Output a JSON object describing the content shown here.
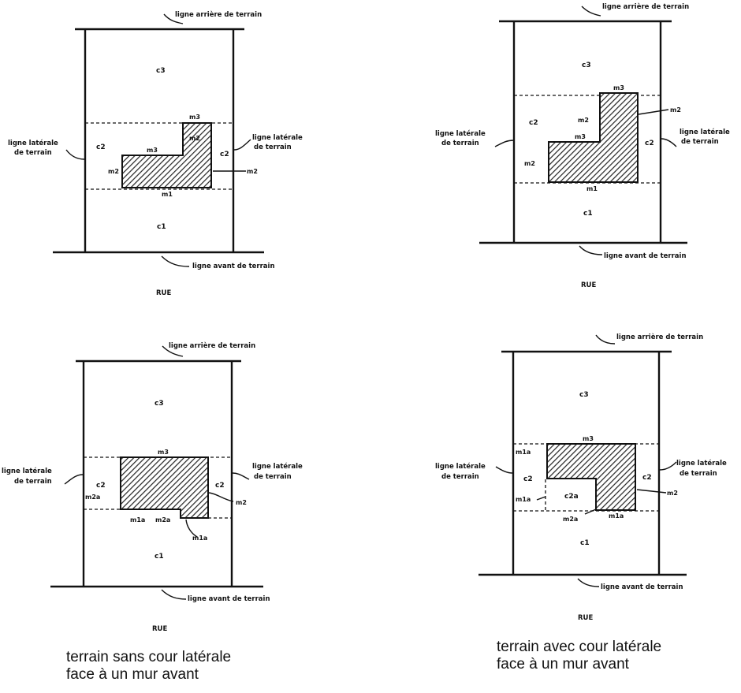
{
  "diagrams": [
    {
      "ligne_arriere": "ligne arrière de terrain",
      "ligne_avant": "ligne avant de terrain",
      "ligne_laterale_g_1": "ligne latérale",
      "ligne_laterale_g_2": "de terrain",
      "ligne_laterale_d_1": "ligne latérale",
      "ligne_laterale_d_2": "de terrain",
      "rue": "RUE",
      "zones": {
        "c1": "c1",
        "c2_left": "c2",
        "c2_right": "c2",
        "c3": "c3"
      },
      "walls": {
        "m1": "m1",
        "m2_left": "m2",
        "m2_inner": "m2",
        "m2_right": "m2",
        "m3_inner": "m3",
        "m3_top": "m3"
      }
    },
    {
      "ligne_arriere": "ligne arrière de terrain",
      "ligne_avant": "ligne avant de terrain",
      "ligne_laterale_g_1": "ligne latérale",
      "ligne_laterale_g_2": "de terrain",
      "ligne_laterale_d_1": "ligne latérale",
      "ligne_laterale_d_2": "de terrain",
      "rue": "RUE",
      "zones": {
        "c1": "c1",
        "c2_left": "c2",
        "c2_right": "c2",
        "c3": "c3"
      },
      "walls": {
        "m1": "m1",
        "m2_left": "m2",
        "m2_inner": "m2",
        "m2_right": "m2",
        "m3_inner": "m3",
        "m3_top": "m3"
      }
    },
    {
      "ligne_arriere": "ligne arrière de terrain",
      "ligne_avant": "ligne avant de terrain",
      "ligne_laterale_g_1": "ligne latérale",
      "ligne_laterale_g_2": "de terrain",
      "ligne_laterale_d_1": "ligne latérale",
      "ligne_laterale_d_2": "de terrain",
      "rue": "RUE",
      "zones": {
        "c1": "c1",
        "c2_left": "c2",
        "c2_right": "c2",
        "c3": "c3"
      },
      "walls": {
        "m3": "m3",
        "m2a": "m2a",
        "m2_right": "m2",
        "m1a": "m1a",
        "m2a_bottom": "m2a",
        "m1a_bottom": "m1a"
      }
    },
    {
      "ligne_arriere": "ligne arrière de terrain",
      "ligne_avant": "ligne avant de terrain",
      "ligne_laterale_g_1": "ligne latérale",
      "ligne_laterale_g_2": "de terrain",
      "ligne_laterale_d_1": "ligne latérale",
      "ligne_laterale_d_2": "de terrain",
      "rue": "RUE",
      "zones": {
        "c1": "c1",
        "c2_left": "c2",
        "c2_right": "c2",
        "c3": "c3",
        "c2a": "c2a"
      },
      "walls": {
        "m3": "m3",
        "m1a_top": "m1a",
        "m1a_left": "m1a",
        "m2a": "m2a",
        "m1a_bottom": "m1a",
        "m2_right": "m2"
      }
    }
  ],
  "captions": {
    "left_1": "terrain sans cour latérale",
    "left_2": "face à un mur avant",
    "right_1": "terrain avec cour latérale",
    "right_2": "face à un mur avant"
  }
}
